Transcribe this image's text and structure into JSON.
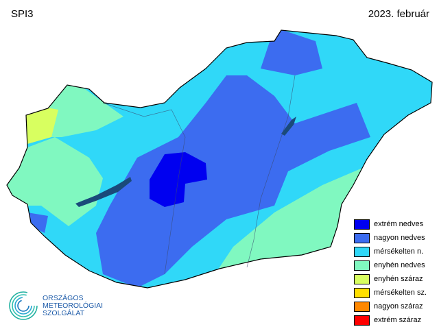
{
  "header": {
    "index": "SPI3",
    "period": "2023. február"
  },
  "legend": [
    {
      "label": "extrém nedves",
      "color": "#0000f0"
    },
    {
      "label": "nagyon nedves",
      "color": "#3c6cf0"
    },
    {
      "label": "mérsékelten n.",
      "color": "#30d8f8"
    },
    {
      "label": "enyhén nedves",
      "color": "#80f8c0"
    },
    {
      "label": "enyhén száraz",
      "color": "#d8ff60"
    },
    {
      "label": "mérsékelten sz.",
      "color": "#ffe000"
    },
    {
      "label": "nagyon száraz",
      "color": "#ff8800"
    },
    {
      "label": "extrém száraz",
      "color": "#ff0000"
    }
  ],
  "logo": {
    "lines": [
      "ORSZÁGOS",
      "METEOROLÓGIAI",
      "SZOLGÁLAT"
    ]
  }
}
